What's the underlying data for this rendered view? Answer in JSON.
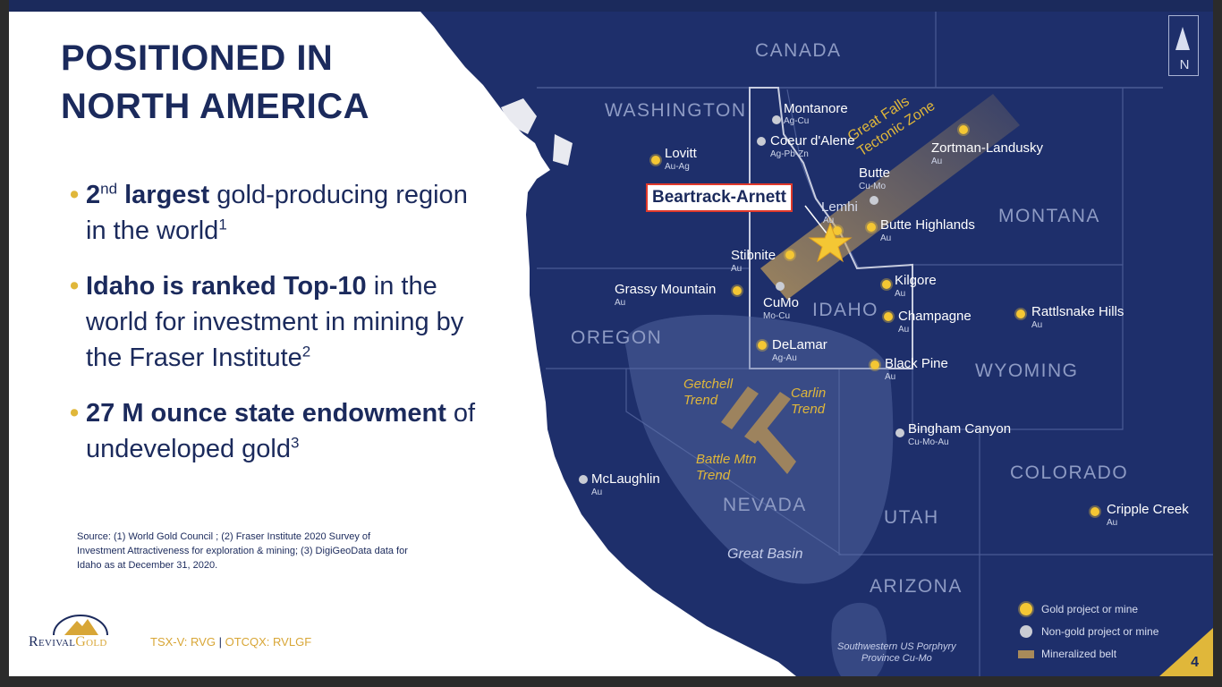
{
  "title_line1": "POSITIONED IN",
  "title_line2": "NORTH AMERICA",
  "bullets": [
    {
      "bold": "2",
      "sup": "nd",
      "bold2": " largest",
      "rest": " gold-producing region in the world",
      "ref": "1"
    },
    {
      "bold": "Idaho is ranked Top-10",
      "rest": " in the world for investment in mining by the Fraser Institute",
      "ref": "2"
    },
    {
      "bold": "27 M ounce state endowment",
      "rest": " of undeveloped gold",
      "ref": "3"
    }
  ],
  "bullet_marker": "•",
  "source": "Source: (1) World Gold Council ; (2) Fraser Institute 2020 Survey of Investment Attractiveness for exploration & mining; (3) DigiGeoData data for Idaho as at December 31, 2020.",
  "logo": {
    "word1": "Revival",
    "word2": "Gold"
  },
  "ticker": {
    "a": "TSX-V: RVG",
    "sep": " | ",
    "b": "OTCQX: RVLGF"
  },
  "page_number": "4",
  "north_label": "N",
  "map": {
    "regions": [
      "CANADA",
      "WASHINGTON",
      "MONTANA",
      "OREGON",
      "IDAHO",
      "WYOMING",
      "NEVADA",
      "UTAH",
      "COLORADO",
      "ARIZONA"
    ],
    "belt_label_line1": "Great Falls",
    "belt_label_line2": "Tectonic Zone",
    "featured": "Beartrack-Arnett",
    "great_basin": "Great Basin",
    "porphyry_line1": "Southwestern US Porphyry",
    "porphyry_line2": "Province Cu-Mo",
    "trends": [
      {
        "line1": "Getchell",
        "line2": "Trend"
      },
      {
        "line1": "Carlin",
        "line2": "Trend"
      },
      {
        "line1": "Battle Mtn",
        "line2": "Trend"
      }
    ],
    "projects": [
      {
        "name": "Montanore",
        "sub": "Ag-Cu",
        "type": "non-gold"
      },
      {
        "name": "Coeur d'Alene",
        "sub": "Ag-Pb-Zn",
        "type": "non-gold"
      },
      {
        "name": "Lovitt",
        "sub": "Au-Ag",
        "type": "gold"
      },
      {
        "name": "Zortman-Landusky",
        "sub": "Au",
        "type": "gold"
      },
      {
        "name": "Butte",
        "sub": "Cu-Mo",
        "type": "non-gold"
      },
      {
        "name": "Lemhi",
        "sub": "Au",
        "type": "gold"
      },
      {
        "name": "Butte Highlands",
        "sub": "Au",
        "type": "gold"
      },
      {
        "name": "Stibnite",
        "sub": "Au",
        "type": "gold"
      },
      {
        "name": "Grassy Mountain",
        "sub": "Au",
        "type": "gold"
      },
      {
        "name": "CuMo",
        "sub": "Mo-Cu",
        "type": "non-gold"
      },
      {
        "name": "Kilgore",
        "sub": "Au",
        "type": "gold"
      },
      {
        "name": "Champagne",
        "sub": "Au",
        "type": "gold"
      },
      {
        "name": "Rattlsnake Hills",
        "sub": "Au",
        "type": "gold"
      },
      {
        "name": "DeLamar",
        "sub": "Ag-Au",
        "type": "gold"
      },
      {
        "name": "Black Pine",
        "sub": "Au",
        "type": "gold"
      },
      {
        "name": "Bingham Canyon",
        "sub": "Cu-Mo-Au",
        "type": "non-gold"
      },
      {
        "name": "McLaughlin",
        "sub": "Au",
        "type": "non-gold"
      },
      {
        "name": "Cripple Creek",
        "sub": "Au",
        "type": "gold"
      }
    ],
    "legend": {
      "gold": "Gold project or mine",
      "nongold": "Non-gold project or mine",
      "belt": "Mineralized belt"
    }
  },
  "colors": {
    "navy": "#1b2a5c",
    "gold": "#e0b73a",
    "map_land": "#1e2f6b",
    "map_bg": "#ffffff"
  }
}
